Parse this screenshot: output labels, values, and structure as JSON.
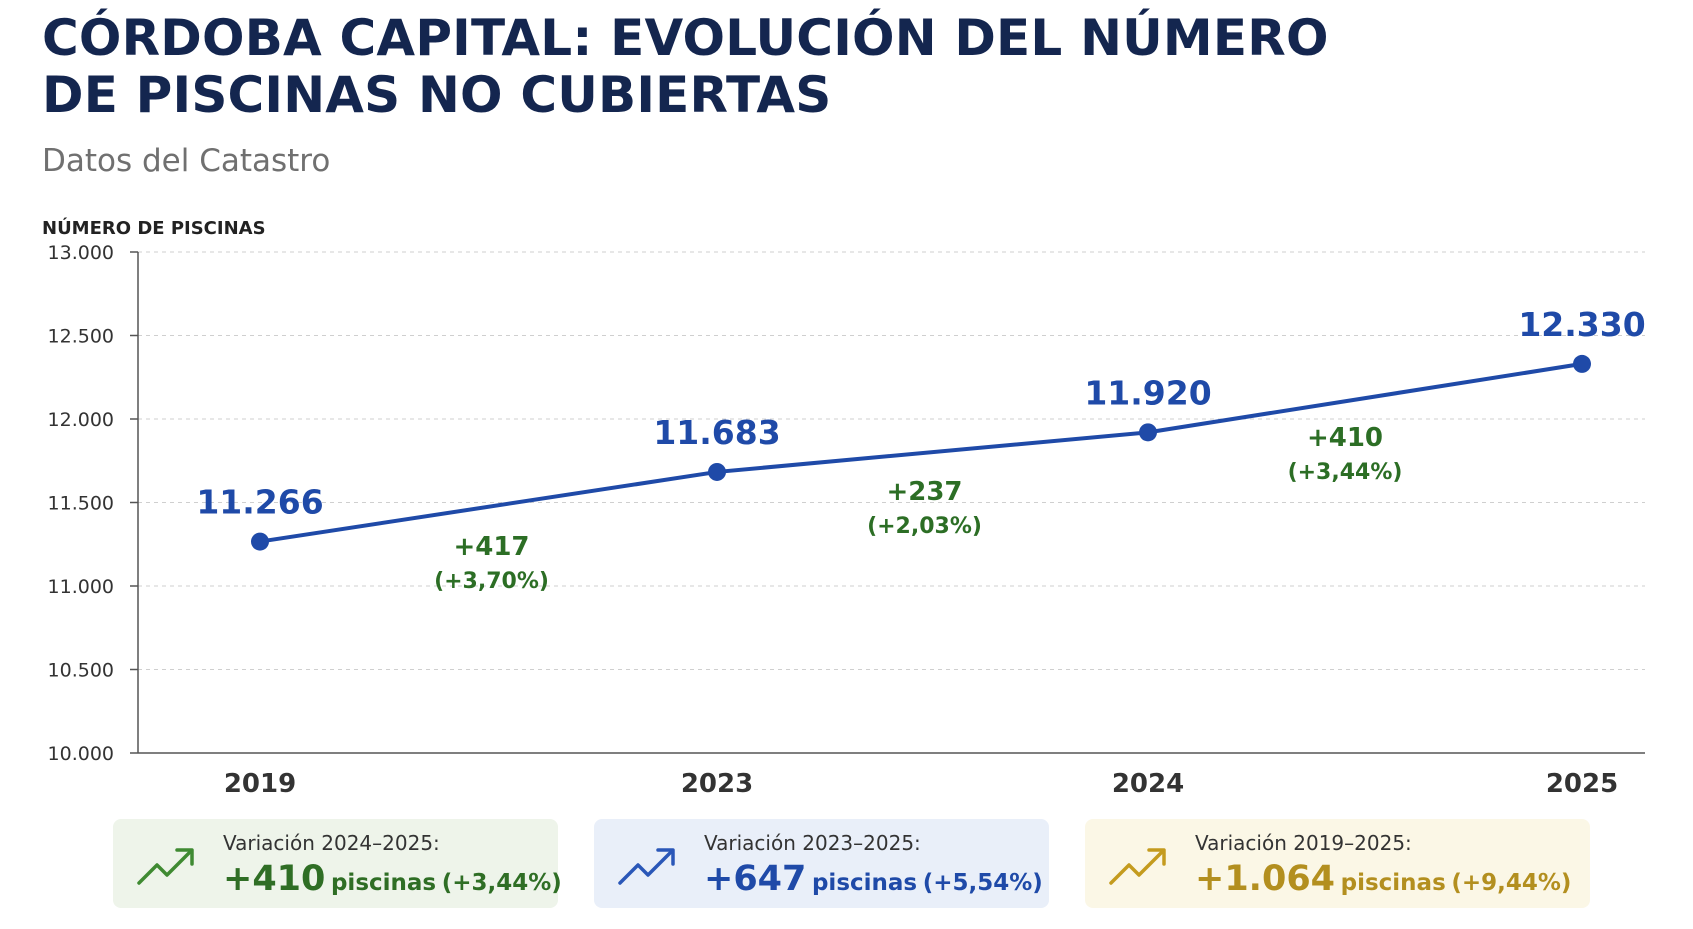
{
  "header": {
    "title_line1": "CÓRDOBA CAPITAL: EVOLUCIÓN DEL NÚMERO",
    "title_line2": "DE PISCINAS NO CUBIERTAS",
    "subtitle": "Datos del Catastro"
  },
  "chart_data": {
    "type": "line",
    "title": "CÓRDOBA CAPITAL: EVOLUCIÓN DEL NÚMERO DE PISCINAS NO CUBIERTAS",
    "subtitle": "Datos del Catastro",
    "ylabel": "NÚMERO DE PISCINAS",
    "xlabel": "",
    "categories": [
      "2019",
      "2023",
      "2024",
      "2025"
    ],
    "values": [
      11266,
      11683,
      11920,
      12330
    ],
    "value_labels": [
      "11.266",
      "11.683",
      "11.920",
      "12.330"
    ],
    "ylim": [
      10000,
      13000
    ],
    "yticks": [
      10000,
      10500,
      11000,
      11500,
      12000,
      12500,
      13000
    ],
    "ytick_labels": [
      "10.000",
      "10.500",
      "11.000",
      "11.500",
      "12.000",
      "12.500",
      "13.000"
    ],
    "grid": true,
    "line_color": "#1f4aa8",
    "changes": [
      {
        "from": "2019",
        "to": "2023",
        "delta": "+417",
        "pct": "(+3,70%)"
      },
      {
        "from": "2023",
        "to": "2024",
        "delta": "+237",
        "pct": "(+2,03%)"
      },
      {
        "from": "2024",
        "to": "2025",
        "delta": "+410",
        "pct": "(+3,44%)"
      }
    ]
  },
  "cards": [
    {
      "label": "Variación 2024–2025:",
      "value": "+410",
      "unit": "piscinas",
      "pct": "(+3,44%)",
      "color": "#2f6e25",
      "icon": "trend-up-icon"
    },
    {
      "label": "Variación 2023–2025:",
      "value": "+647",
      "unit": "piscinas",
      "pct": "(+5,54%)",
      "color": "#1f4aa8",
      "icon": "trend-up-icon"
    },
    {
      "label": "Variación 2019–2025:",
      "value": "+1.064",
      "unit": "piscinas",
      "pct": "(+9,44%)",
      "color": "#b38f1f",
      "icon": "trend-up-icon"
    }
  ]
}
